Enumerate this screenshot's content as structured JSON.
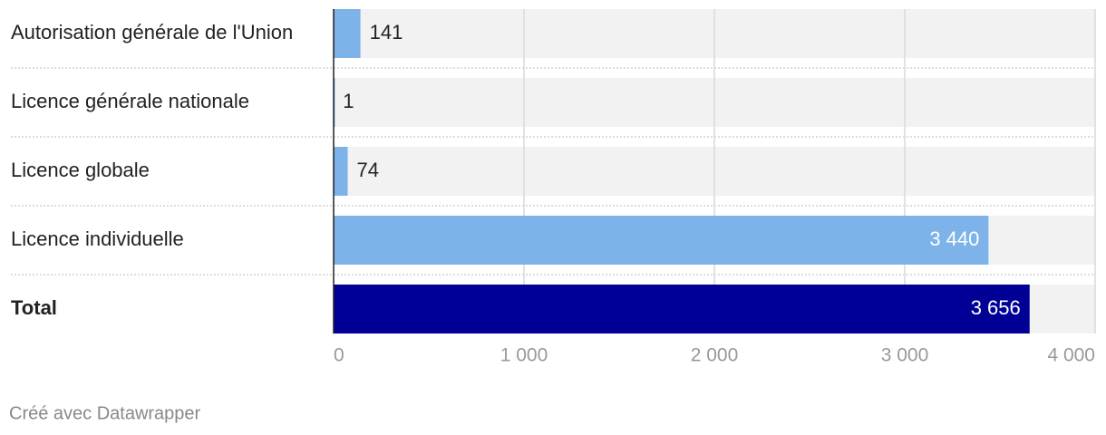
{
  "chart_data": {
    "type": "bar",
    "orientation": "horizontal",
    "categories": [
      "Autorisation générale de l'Union",
      "Licence générale nationale",
      "Licence globale",
      "Licence individuelle",
      "Total"
    ],
    "values": [
      141,
      1,
      74,
      3440,
      3656
    ],
    "value_labels": [
      "141",
      "1",
      "74",
      "3 440",
      "3 656"
    ],
    "colors": [
      "#7eb3ea",
      "#7eb3ea",
      "#7eb3ea",
      "#7eb3ea",
      "#000096"
    ],
    "xlim": [
      0,
      4000
    ],
    "xticks": [
      0,
      {
        "value": 1000,
        "label": "1 000"
      },
      {
        "value": 2000,
        "label": "2 000"
      },
      {
        "value": 3000,
        "label": "3 000"
      },
      {
        "value": 4000,
        "label": "4 000"
      }
    ],
    "grid": true,
    "footer": "Créé avec Datawrapper"
  }
}
